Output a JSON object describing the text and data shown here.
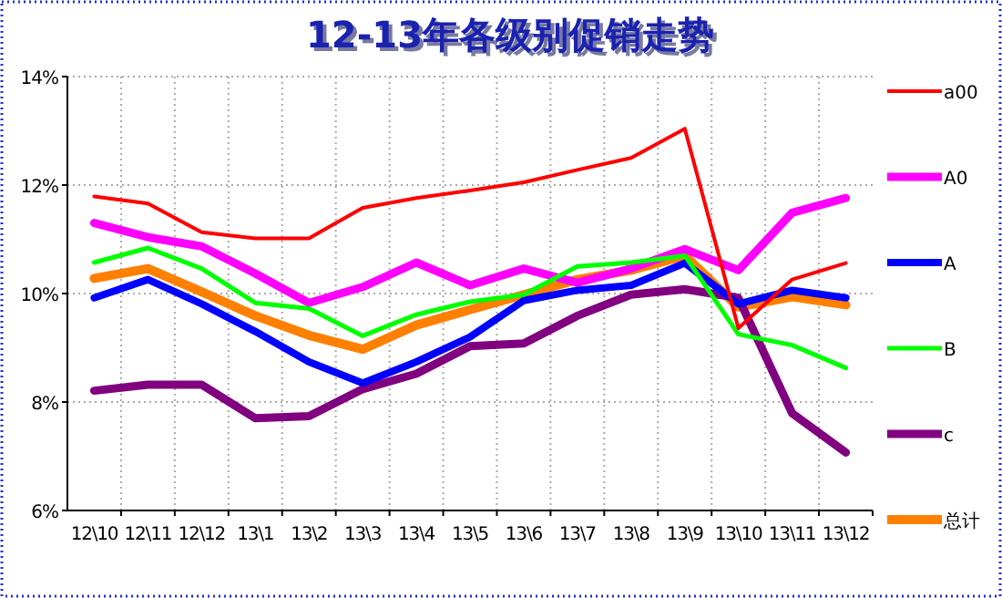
{
  "chart_data": {
    "type": "line",
    "title": "12-13年各级别促销走势",
    "categories": [
      "12\\10",
      "12\\11",
      "12\\12",
      "13\\1",
      "13\\2",
      "13\\3",
      "13\\4",
      "13\\5",
      "13\\6",
      "13\\7",
      "13\\8",
      "13\\9",
      "13\\10",
      "13\\11",
      "13\\12"
    ],
    "series": [
      {
        "name": "a00",
        "color": "#ff0000",
        "values": [
          11.79,
          11.66,
          11.13,
          11.02,
          11.02,
          11.58,
          11.76,
          11.9,
          12.05,
          12.28,
          12.5,
          13.04,
          9.36,
          10.26,
          10.56
        ]
      },
      {
        "name": "A0",
        "color": "#ff00ff",
        "values": [
          11.3,
          11.04,
          10.87,
          10.37,
          9.83,
          10.12,
          10.57,
          10.15,
          10.46,
          10.2,
          10.46,
          10.82,
          10.43,
          11.49,
          11.76
        ]
      },
      {
        "name": "A",
        "color": "#0000ff",
        "values": [
          9.92,
          10.26,
          9.81,
          9.3,
          8.74,
          8.35,
          8.74,
          9.2,
          9.87,
          10.06,
          10.15,
          10.56,
          9.81,
          10.06,
          9.92
        ]
      },
      {
        "name": "B",
        "color": "#00ff00",
        "values": [
          10.57,
          10.84,
          10.46,
          9.83,
          9.72,
          9.22,
          9.61,
          9.85,
          9.98,
          10.5,
          10.57,
          10.7,
          9.25,
          9.05,
          8.63
        ]
      },
      {
        "name": "c",
        "color": "#800080",
        "values": [
          8.21,
          8.32,
          8.32,
          7.7,
          7.74,
          8.24,
          8.52,
          9.03,
          9.08,
          9.59,
          9.98,
          10.08,
          9.92,
          7.79,
          7.07
        ]
      },
      {
        "name": "总计",
        "color": "#ff7f00",
        "values": [
          10.28,
          10.46,
          10.03,
          9.59,
          9.23,
          8.97,
          9.42,
          9.7,
          9.98,
          10.26,
          10.43,
          10.7,
          9.75,
          9.94,
          9.79
        ]
      }
    ],
    "ylim": [
      6,
      14
    ],
    "yticks": [
      {
        "value": 6,
        "label": "6%"
      },
      {
        "value": 8,
        "label": "8%"
      },
      {
        "value": 10,
        "label": "10%"
      },
      {
        "value": 12,
        "label": "12%"
      },
      {
        "value": 14,
        "label": "14%"
      }
    ],
    "grid": true,
    "legend": "right",
    "marker": "none",
    "line_style": "solid"
  }
}
